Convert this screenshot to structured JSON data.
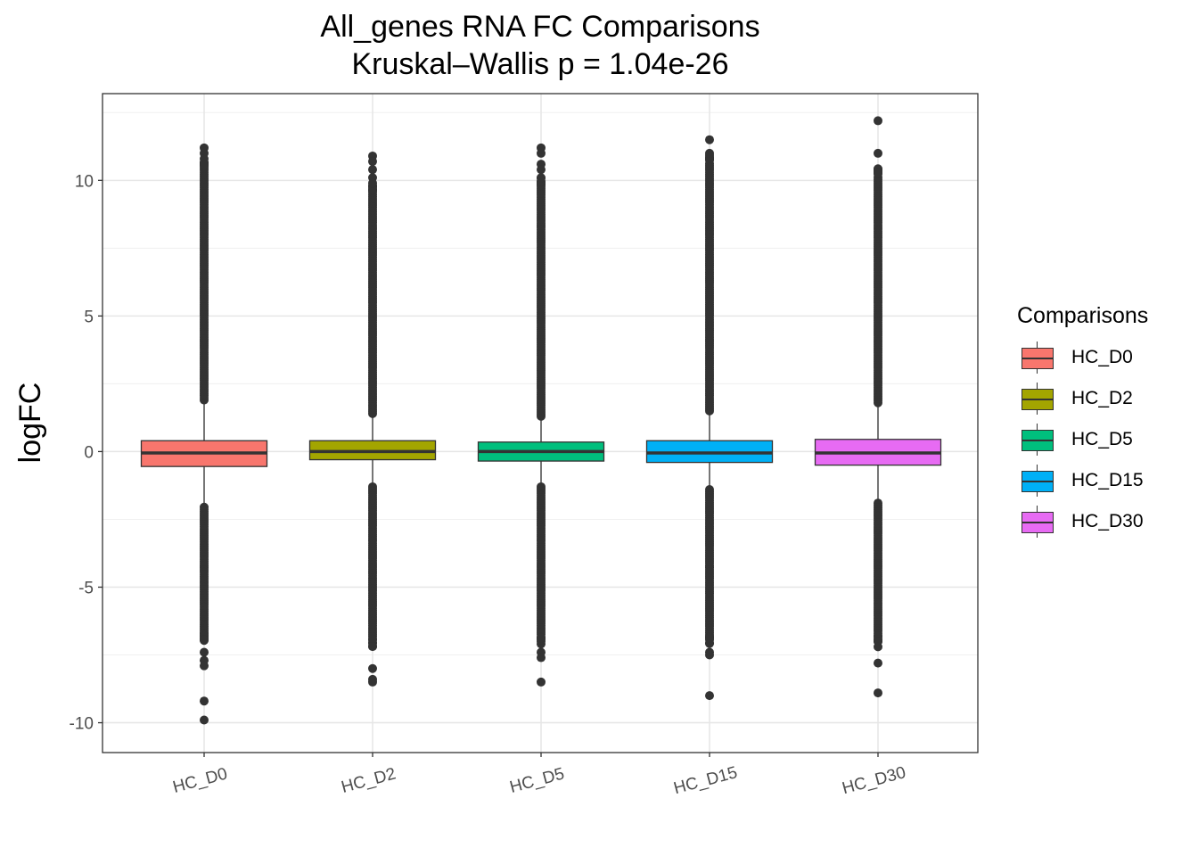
{
  "chart_data": {
    "type": "boxplot",
    "title": "All_genes RNA FC Comparisons",
    "subtitle": "Kruskal–Wallis p = 1.04e-26",
    "xlabel": "",
    "ylabel": "logFC",
    "ylim": [
      -11.1,
      13.2
    ],
    "yticks": [
      -10,
      -5,
      0,
      5,
      10
    ],
    "ytick_labels": [
      "-10",
      "-5",
      "0",
      "5",
      "10"
    ],
    "grid": true,
    "legend_title": "Comparisons",
    "legend_position": "right",
    "categories": [
      "HC_D0",
      "HC_D2",
      "HC_D5",
      "HC_D15",
      "HC_D30"
    ],
    "colors": [
      "#F8766D",
      "#A3A500",
      "#00BF7D",
      "#00B0F6",
      "#E76BF3"
    ],
    "series": [
      {
        "name": "HC_D0",
        "q1": -0.55,
        "median": -0.05,
        "q3": 0.4,
        "whisker_low": -2.05,
        "whisker_high": 1.9,
        "outlier_high_range": [
          1.9,
          10.5
        ],
        "outlier_low_range": [
          -6.7,
          -2.05
        ],
        "extreme_outliers": [
          11.2,
          11.0,
          10.8,
          10.6,
          -7.4,
          -7.7,
          -7.9,
          -9.2,
          -9.9
        ]
      },
      {
        "name": "HC_D2",
        "q1": -0.3,
        "median": 0.0,
        "q3": 0.4,
        "whisker_low": -1.3,
        "whisker_high": 1.4,
        "outlier_high_range": [
          1.4,
          9.6
        ],
        "outlier_low_range": [
          -6.9,
          -1.3
        ],
        "extreme_outliers": [
          10.9,
          10.7,
          10.4,
          10.1,
          9.9,
          -8.0,
          -8.4,
          -8.5
        ]
      },
      {
        "name": "HC_D5",
        "q1": -0.35,
        "median": 0.0,
        "q3": 0.35,
        "whisker_low": -1.3,
        "whisker_high": 1.3,
        "outlier_high_range": [
          1.3,
          9.8
        ],
        "outlier_low_range": [
          -6.8,
          -1.3
        ],
        "extreme_outliers": [
          11.2,
          11.0,
          10.6,
          10.4,
          10.1,
          -7.4,
          -7.6,
          -8.5
        ]
      },
      {
        "name": "HC_D15",
        "q1": -0.4,
        "median": -0.05,
        "q3": 0.4,
        "whisker_low": -1.4,
        "whisker_high": 1.5,
        "outlier_high_range": [
          1.5,
          10.7
        ],
        "outlier_low_range": [
          -6.8,
          -1.4
        ],
        "extreme_outliers": [
          11.5,
          11.0,
          -7.4,
          -7.5,
          -9.0
        ]
      },
      {
        "name": "HC_D30",
        "q1": -0.5,
        "median": -0.05,
        "q3": 0.45,
        "whisker_low": -1.9,
        "whisker_high": 1.8,
        "outlier_high_range": [
          1.8,
          10.2
        ],
        "outlier_low_range": [
          -6.8,
          -1.9
        ],
        "extreme_outliers": [
          12.2,
          11.0,
          10.4,
          10.3,
          -7.2,
          -7.8,
          -8.9
        ]
      }
    ]
  }
}
